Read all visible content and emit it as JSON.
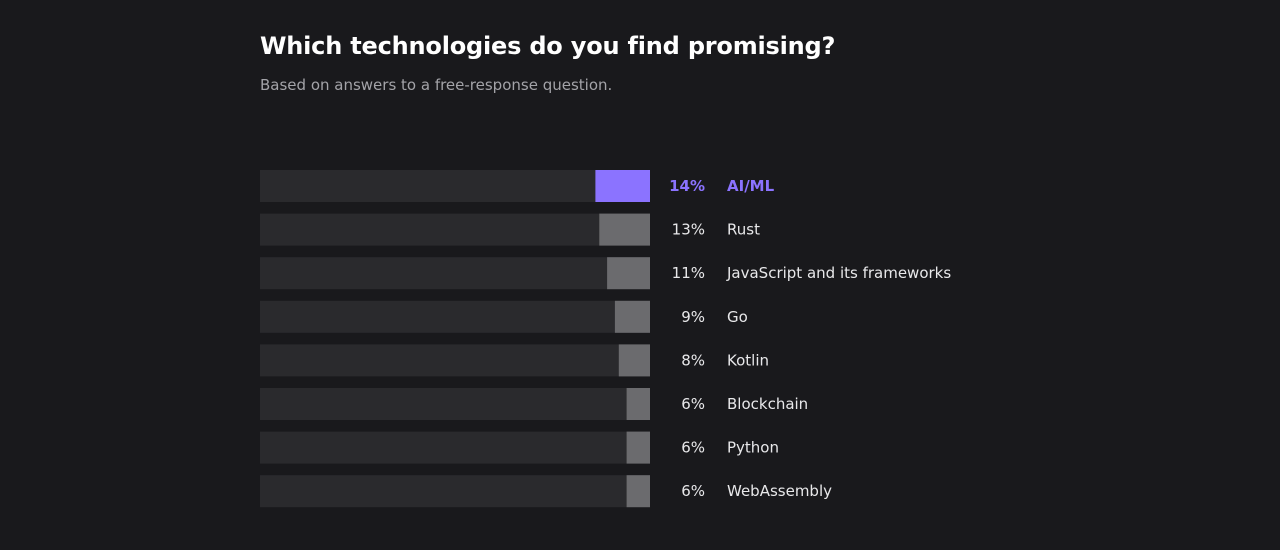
{
  "chart_data": {
    "type": "bar",
    "orientation": "horizontal",
    "title": "Which technologies do you find promising?",
    "subtitle": "Based on answers to a free-response question.",
    "categories": [
      "AI/ML",
      "Rust",
      "JavaScript and its frameworks",
      "Go",
      "Kotlin",
      "Blockchain",
      "Python",
      "WebAssembly"
    ],
    "values": [
      14,
      13,
      11,
      9,
      8,
      6,
      6,
      6
    ],
    "value_labels": [
      "14%",
      "13%",
      "11%",
      "9%",
      "8%",
      "6%",
      "6%",
      "6%"
    ],
    "unit": "%",
    "highlighted_category": "AI/ML",
    "xlim": [
      0,
      100
    ],
    "grid": false,
    "legend": "none"
  },
  "colors": {
    "background": "#19191c",
    "track": "#2a2a2d",
    "bar": "#6b6b6e",
    "highlight": "#8b73ff",
    "text": "#e8e8ea",
    "subtitle": "#a3a3a8"
  }
}
